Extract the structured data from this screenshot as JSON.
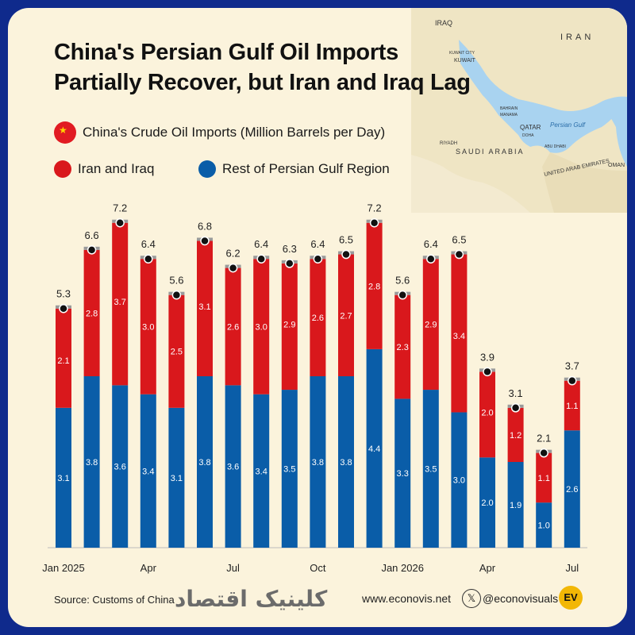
{
  "title_line1": "China's Persian Gulf Oil Imports",
  "title_line2": "Partially Recover, but Iran and Iraq Lag",
  "subtitle": "China's Crude Oil Imports (Million Barrels per Day)",
  "legend": {
    "iran": "Iran and Iraq",
    "rest": "Rest of Persian Gulf Region"
  },
  "colors": {
    "iran": "#d9181c",
    "rest": "#0a5da8",
    "background": "#fbf3dc",
    "frame": "#0f2a8c"
  },
  "map_labels": {
    "iraq": "IRAQ",
    "iran": "IRAN",
    "kuwait": "KUWAIT",
    "kuwait_city": "KUWAIT CITY",
    "bahrain": "BAHRAIN",
    "manama": "MANAMA",
    "qatar": "QATAR",
    "doha": "DOHA",
    "persian_gulf": "Persian Gulf",
    "riyadh": "RIYADH",
    "saudi_arabia": "SAUDI ARABIA",
    "abu_dhabi": "ABU DHABI",
    "uae": "UNITED ARAB EMIRATES",
    "oman": "OMAN"
  },
  "chart_data": {
    "type": "bar",
    "stacked": true,
    "categories": [
      "Jan 2025",
      "Feb 2025",
      "Mar 2025",
      "Apr 2025",
      "May 2025",
      "Jun 2025",
      "Jul 2025",
      "Aug 2025",
      "Sep 2025",
      "Oct 2025",
      "Nov 2025",
      "Dec 2025",
      "Jan 2026",
      "Feb 2026",
      "Mar 2026",
      "Apr 2026",
      "May 2026",
      "Jun 2026",
      "Jul 2026"
    ],
    "tick_labels": [
      "Jan 2025",
      "",
      "",
      "Apr",
      "",
      "",
      "Jul",
      "",
      "",
      "Oct",
      "",
      "",
      "Jan 2026",
      "",
      "",
      "Apr",
      "",
      "",
      "Jul"
    ],
    "series": [
      {
        "name": "Rest of Persian Gulf Region",
        "values": [
          3.1,
          3.8,
          3.6,
          3.4,
          3.1,
          3.8,
          3.6,
          3.4,
          3.5,
          3.8,
          3.8,
          4.4,
          3.3,
          3.5,
          3.0,
          2.0,
          1.9,
          1.0,
          2.6
        ]
      },
      {
        "name": "Iran and Iraq",
        "values": [
          2.1,
          2.8,
          3.7,
          3.0,
          2.5,
          3.1,
          2.6,
          3.0,
          2.9,
          2.6,
          2.7,
          2.8,
          2.3,
          2.9,
          3.4,
          2.0,
          1.2,
          1.1,
          1.1
        ]
      }
    ],
    "totals": [
      5.3,
      6.6,
      7.2,
      6.4,
      5.6,
      6.8,
      6.2,
      6.4,
      6.3,
      6.4,
      6.5,
      7.2,
      5.6,
      6.4,
      6.5,
      3.9,
      3.1,
      2.1,
      3.7
    ],
    "ylim": [
      0,
      7.6
    ]
  },
  "footer": {
    "source": "Source: Customs of China",
    "watermark": "کلینیک اقتصاد",
    "site": "www.econovis.net",
    "x_icon": "x-logo-icon",
    "handle": "@econovisuals",
    "logo": "EV"
  }
}
